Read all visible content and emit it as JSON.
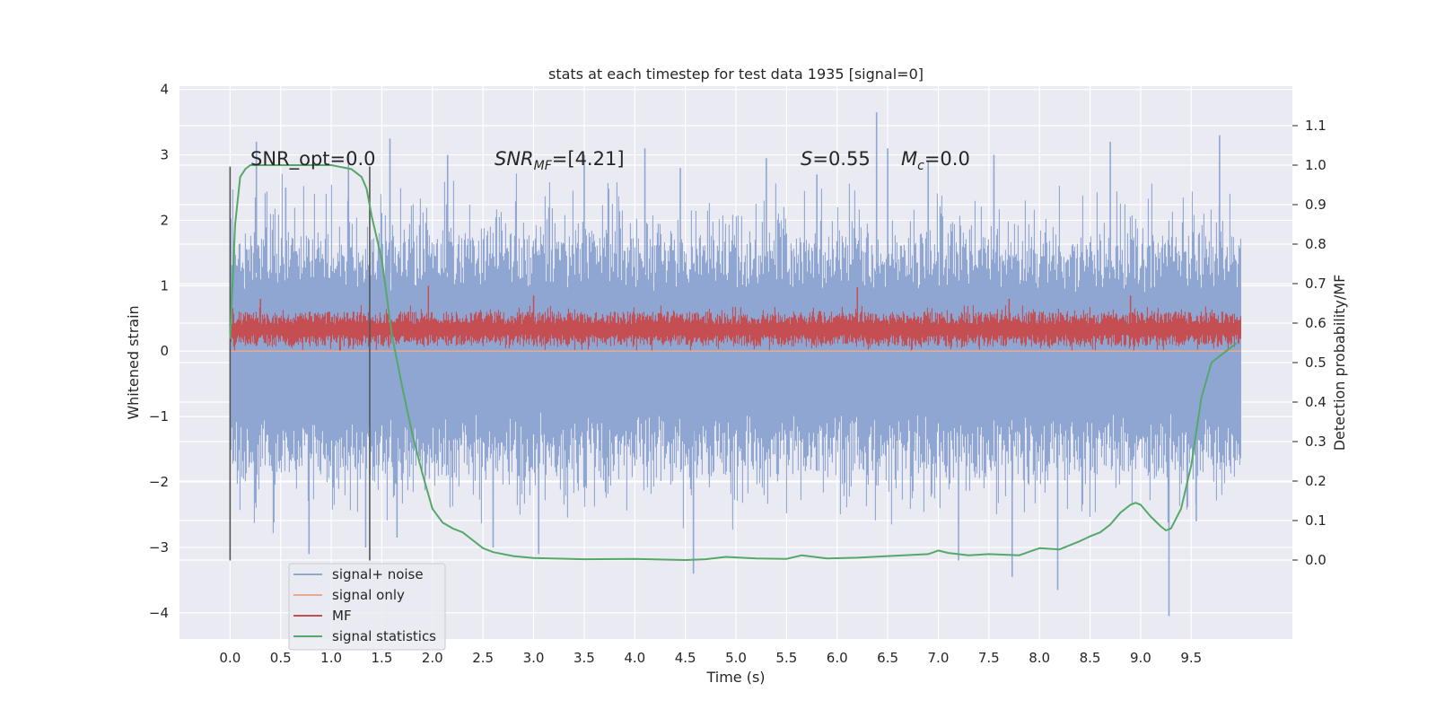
{
  "chart_data": {
    "type": "line",
    "title": "stats at each timestep for test data 1935 [signal=0]",
    "xlabel": "Time (s)",
    "ylabel_left": "Whitened strain",
    "ylabel_right": "Detection probability/MF",
    "xlim": [
      -0.5,
      10.5
    ],
    "ylim_left": [
      -4.4,
      4.05
    ],
    "ylim_right": [
      -0.2,
      1.2
    ],
    "x_ticks": [
      0.0,
      0.5,
      1.0,
      1.5,
      2.0,
      2.5,
      3.0,
      3.5,
      4.0,
      4.5,
      5.0,
      5.5,
      6.0,
      6.5,
      7.0,
      7.5,
      8.0,
      8.5,
      9.0,
      9.5
    ],
    "x_tick_labels": [
      "0.0",
      "0.5",
      "1.0",
      "1.5",
      "2.0",
      "2.5",
      "3.0",
      "3.5",
      "4.0",
      "4.5",
      "5.0",
      "5.5",
      "6.0",
      "6.5",
      "7.0",
      "7.5",
      "8.0",
      "8.5",
      "9.0",
      "9.5"
    ],
    "y_left_ticks": [
      -4,
      -3,
      -2,
      -1,
      0,
      1,
      2,
      3,
      4
    ],
    "y_left_tick_labels": [
      "−4",
      "−3",
      "−2",
      "−1",
      "0",
      "1",
      "2",
      "3",
      "4"
    ],
    "y_right_ticks": [
      0.0,
      0.1,
      0.2,
      0.3,
      0.4,
      0.5,
      0.6,
      0.7,
      0.8,
      0.9,
      1.0,
      1.1
    ],
    "y_right_tick_labels": [
      "0.0",
      "0.1",
      "0.2",
      "0.3",
      "0.4",
      "0.5",
      "0.6",
      "0.7",
      "0.8",
      "0.9",
      "1.0",
      "1.1"
    ],
    "grid": true,
    "legend_position": "lower-left",
    "legend": [
      {
        "label": "signal+ noise",
        "color": "#8fa6d2"
      },
      {
        "label": "signal only",
        "color": "#eaa98a"
      },
      {
        "label": "MF",
        "color": "#c44e52"
      },
      {
        "label": "signal statistics",
        "color": "#55a868"
      }
    ],
    "annotations": {
      "snr_opt": "SNR_opt=0.0",
      "snr_mf_italic": "SNR",
      "snr_mf_sub": "MF",
      "snr_mf_rest": "=[4.21]",
      "s_italic": "S",
      "s_rest": "=0.55",
      "mc_italic": "M",
      "mc_sub": "c",
      "mc_rest": "=0.0"
    },
    "vertical_lines": [
      0.0,
      1.38
    ],
    "vertical_line_range_left": [
      -3.2,
      2.82
    ],
    "series": [
      {
        "name": "signal statistics",
        "axis": "right",
        "color": "#55a868",
        "x": [
          0.0,
          0.05,
          0.1,
          0.15,
          0.2,
          0.3,
          0.5,
          0.7,
          1.0,
          1.2,
          1.25,
          1.3,
          1.35,
          1.4,
          1.5,
          1.6,
          1.7,
          1.8,
          1.9,
          2.0,
          2.1,
          2.2,
          2.3,
          2.4,
          2.5,
          2.6,
          2.8,
          3.0,
          3.5,
          4.0,
          4.5,
          4.7,
          4.9,
          5.2,
          5.5,
          5.65,
          5.9,
          6.2,
          6.5,
          6.9,
          7.0,
          7.1,
          7.3,
          7.5,
          7.8,
          8.0,
          8.2,
          8.4,
          8.5,
          8.6,
          8.7,
          8.8,
          8.9,
          8.95,
          9.0,
          9.1,
          9.2,
          9.25,
          9.3,
          9.4,
          9.5,
          9.6,
          9.7,
          9.8,
          9.9,
          9.95
        ],
        "y": [
          0.56,
          0.85,
          0.97,
          0.99,
          1.0,
          1.0,
          1.0,
          1.0,
          1.0,
          0.99,
          0.98,
          0.97,
          0.94,
          0.87,
          0.76,
          0.57,
          0.44,
          0.32,
          0.22,
          0.13,
          0.095,
          0.08,
          0.07,
          0.05,
          0.03,
          0.02,
          0.01,
          0.005,
          0.002,
          0.003,
          0.0,
          0.002,
          0.008,
          0.004,
          0.003,
          0.012,
          0.004,
          0.006,
          0.01,
          0.015,
          0.024,
          0.018,
          0.012,
          0.015,
          0.012,
          0.03,
          0.027,
          0.048,
          0.06,
          0.07,
          0.09,
          0.12,
          0.14,
          0.145,
          0.14,
          0.11,
          0.085,
          0.075,
          0.08,
          0.13,
          0.24,
          0.41,
          0.5,
          0.52,
          0.54,
          0.55
        ]
      },
      {
        "name": "signal+ noise",
        "axis": "left",
        "color": "#8fa6d2",
        "x_range": [
          0.0,
          9.99
        ],
        "envelope": {
          "typical_max": 1.6,
          "typical_min": -1.7,
          "spikes": [
            {
              "x": 0.26,
              "y": 3.2
            },
            {
              "x": 0.55,
              "y": 2.5
            },
            {
              "x": 0.78,
              "y": -3.1
            },
            {
              "x": 1.17,
              "y": 3.0
            },
            {
              "x": 1.34,
              "y": -3.0
            },
            {
              "x": 1.58,
              "y": 3.25
            },
            {
              "x": 1.65,
              "y": -2.85
            },
            {
              "x": 2.15,
              "y": 3.0
            },
            {
              "x": 2.6,
              "y": -3.0
            },
            {
              "x": 3.05,
              "y": -3.1
            },
            {
              "x": 3.5,
              "y": 3.0
            },
            {
              "x": 4.1,
              "y": 3.1
            },
            {
              "x": 4.58,
              "y": -3.4
            },
            {
              "x": 4.45,
              "y": 2.8
            },
            {
              "x": 5.3,
              "y": 2.95
            },
            {
              "x": 5.8,
              "y": 2.7
            },
            {
              "x": 6.39,
              "y": 3.65
            },
            {
              "x": 6.5,
              "y": 3.1
            },
            {
              "x": 6.9,
              "y": 2.9
            },
            {
              "x": 7.2,
              "y": -3.2
            },
            {
              "x": 7.55,
              "y": 3.0
            },
            {
              "x": 7.73,
              "y": -3.45
            },
            {
              "x": 8.18,
              "y": -3.65
            },
            {
              "x": 8.7,
              "y": 3.2
            },
            {
              "x": 9.28,
              "y": -4.05
            },
            {
              "x": 9.78,
              "y": 3.3
            },
            {
              "x": 9.55,
              "y": -2.6
            }
          ]
        }
      },
      {
        "name": "MF",
        "axis": "left",
        "color": "#c44e52",
        "x_range": [
          0.0,
          9.99
        ],
        "band": {
          "min": 0.0,
          "max": 0.7,
          "center": 0.33
        },
        "spikes": [
          {
            "x": 0.3,
            "y": 0.8
          },
          {
            "x": 1.96,
            "y": 1.0
          },
          {
            "x": 6.2,
            "y": 0.98
          },
          {
            "x": 3.0,
            "y": 0.85
          },
          {
            "x": 7.7,
            "y": 0.8
          },
          {
            "x": 8.9,
            "y": 0.85
          }
        ]
      },
      {
        "name": "signal only",
        "axis": "left",
        "color": "#eaa98a",
        "x": [
          0.0,
          9.99
        ],
        "y": [
          0.0,
          0.0
        ]
      }
    ]
  }
}
